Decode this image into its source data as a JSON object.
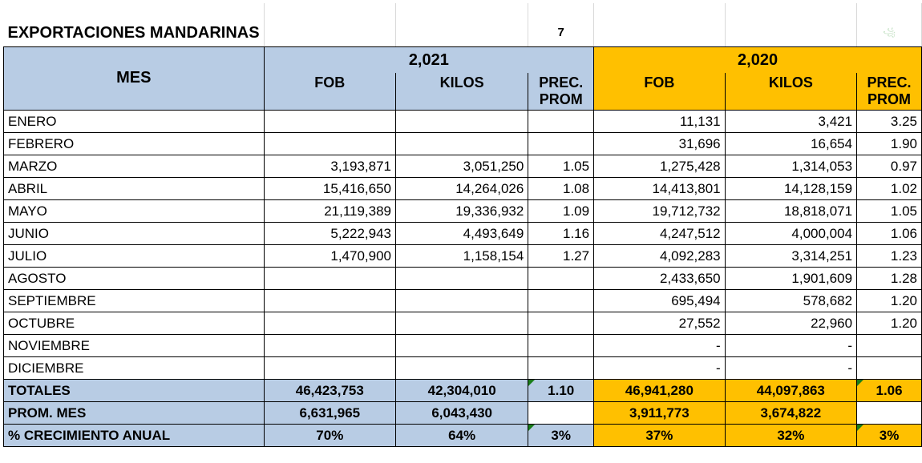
{
  "title": "EXPORTACIONES MANDARINAS",
  "title_note": "7",
  "corner_mark": "꧁",
  "header": {
    "mes": "MES",
    "year_2021": "2,021",
    "year_2020": "2,020",
    "fob": "FOB",
    "kilos": "KILOS",
    "prec_line1": "PREC.",
    "prec_line2": "PROM"
  },
  "rows": [
    {
      "mes": "ENERO",
      "fob21": "",
      "kilos21": "",
      "prec21": "",
      "fob20": "11,131",
      "kilos20": "3,421",
      "prec20": "3.25"
    },
    {
      "mes": "FEBRERO",
      "fob21": "",
      "kilos21": "",
      "prec21": "",
      "fob20": "31,696",
      "kilos20": "16,654",
      "prec20": "1.90"
    },
    {
      "mes": "MARZO",
      "fob21": "3,193,871",
      "kilos21": "3,051,250",
      "prec21": "1.05",
      "fob20": "1,275,428",
      "kilos20": "1,314,053",
      "prec20": "0.97"
    },
    {
      "mes": "ABRIL",
      "fob21": "15,416,650",
      "kilos21": "14,264,026",
      "prec21": "1.08",
      "fob20": "14,413,801",
      "kilos20": "14,128,159",
      "prec20": "1.02"
    },
    {
      "mes": "MAYO",
      "fob21": "21,119,389",
      "kilos21": "19,336,932",
      "prec21": "1.09",
      "fob20": "19,712,732",
      "kilos20": "18,818,071",
      "prec20": "1.05"
    },
    {
      "mes": "JUNIO",
      "fob21": "5,222,943",
      "kilos21": "4,493,649",
      "prec21": "1.16",
      "fob20": "4,247,512",
      "kilos20": "4,000,004",
      "prec20": "1.06"
    },
    {
      "mes": "JULIO",
      "fob21": "1,470,900",
      "kilos21": "1,158,154",
      "prec21": "1.27",
      "fob20": "4,092,283",
      "kilos20": "3,314,251",
      "prec20": "1.23"
    },
    {
      "mes": "AGOSTO",
      "fob21": "",
      "kilos21": "",
      "prec21": "",
      "fob20": "2,433,650",
      "kilos20": "1,901,609",
      "prec20": "1.28"
    },
    {
      "mes": "SEPTIEMBRE",
      "fob21": "",
      "kilos21": "",
      "prec21": "",
      "fob20": "695,494",
      "kilos20": "578,682",
      "prec20": "1.20"
    },
    {
      "mes": "OCTUBRE",
      "fob21": "",
      "kilos21": "",
      "prec21": "",
      "fob20": "27,552",
      "kilos20": "22,960",
      "prec20": "1.20"
    },
    {
      "mes": "NOVIEMBRE",
      "fob21": "",
      "kilos21": "",
      "prec21": "",
      "fob20": "-",
      "kilos20": "-",
      "prec20": ""
    },
    {
      "mes": "DICIEMBRE",
      "fob21": "",
      "kilos21": "",
      "prec21": "",
      "fob20": "-",
      "kilos20": "-",
      "prec20": ""
    }
  ],
  "totales": {
    "label": "TOTALES",
    "fob21": "46,423,753",
    "kilos21": "42,304,010",
    "prec21": "1.10",
    "fob20": "46,941,280",
    "kilos20": "44,097,863",
    "prec20": "1.06"
  },
  "prom_mes": {
    "label": "PROM. MES",
    "fob21": "6,631,965",
    "kilos21": "6,043,430",
    "prec21": "",
    "fob20": "3,911,773",
    "kilos20": "3,674,822",
    "prec20": ""
  },
  "crecimiento": {
    "label": "% CRECIMIENTO ANUAL",
    "fob21": "70%",
    "kilos21": "64%",
    "prec21": "3%",
    "fob20": "37%",
    "kilos20": "32%",
    "prec20": "3%"
  },
  "colors": {
    "blue_header": "#b8cce4",
    "orange_header": "#ffc000",
    "comment_marker": "#1a7d1a"
  }
}
